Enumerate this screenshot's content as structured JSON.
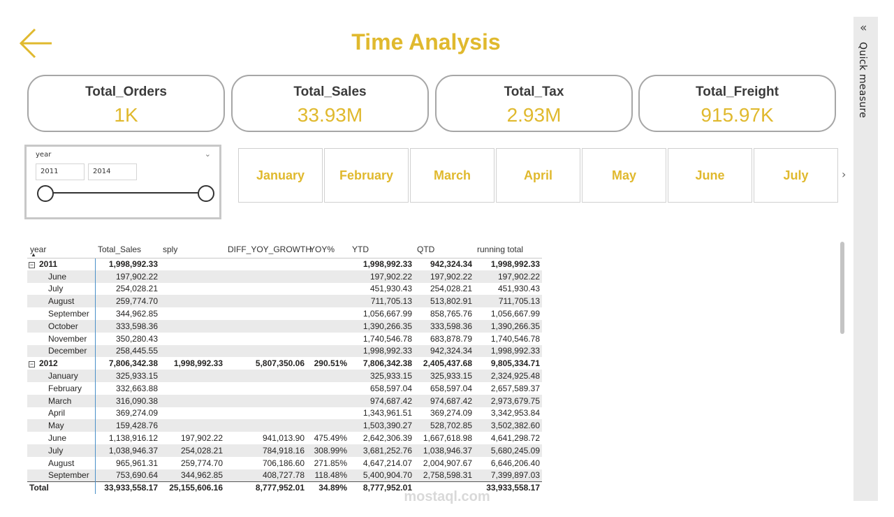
{
  "page": {
    "title": "Time Analysis",
    "back_icon": "arrow-left-icon",
    "accent_color": "#E0B92E"
  },
  "cards": [
    {
      "label": "Total_Orders",
      "value": "1K"
    },
    {
      "label": "Total_Sales",
      "value": "33.93M"
    },
    {
      "label": "Total_Tax",
      "value": "2.93M"
    },
    {
      "label": "Total_Freight",
      "value": "915.97K"
    }
  ],
  "slicer": {
    "title": "year",
    "start": "2011",
    "end": "2014",
    "chevron": "chevron-down-icon"
  },
  "months": [
    "January",
    "February",
    "March",
    "April",
    "May",
    "June",
    "July"
  ],
  "month_next_icon": "chevron-right-icon",
  "quick_measure": {
    "label": "Quick measure",
    "icon": "double-chevron-left-icon"
  },
  "table": {
    "headers": [
      "year",
      "Total_Sales",
      "sply",
      "DIFF_YOY_GROWTH",
      "YOY%",
      "YTD",
      "QTD",
      "running total"
    ],
    "sort_indicator": "▲",
    "rows": [
      {
        "type": "year",
        "cells": [
          "2011",
          "1,998,992.33",
          "",
          "",
          "",
          "1,998,992.33",
          "942,324.34",
          "1,998,992.33"
        ]
      },
      {
        "type": "child",
        "cells": [
          "June",
          "197,902.22",
          "",
          "",
          "",
          "197,902.22",
          "197,902.22",
          "197,902.22"
        ]
      },
      {
        "type": "child",
        "cells": [
          "July",
          "254,028.21",
          "",
          "",
          "",
          "451,930.43",
          "254,028.21",
          "451,930.43"
        ]
      },
      {
        "type": "child",
        "cells": [
          "August",
          "259,774.70",
          "",
          "",
          "",
          "711,705.13",
          "513,802.91",
          "711,705.13"
        ]
      },
      {
        "type": "child",
        "cells": [
          "September",
          "344,962.85",
          "",
          "",
          "",
          "1,056,667.99",
          "858,765.76",
          "1,056,667.99"
        ]
      },
      {
        "type": "child",
        "cells": [
          "October",
          "333,598.36",
          "",
          "",
          "",
          "1,390,266.35",
          "333,598.36",
          "1,390,266.35"
        ]
      },
      {
        "type": "child",
        "cells": [
          "November",
          "350,280.43",
          "",
          "",
          "",
          "1,740,546.78",
          "683,878.79",
          "1,740,546.78"
        ]
      },
      {
        "type": "child",
        "cells": [
          "December",
          "258,445.55",
          "",
          "",
          "",
          "1,998,992.33",
          "942,324.34",
          "1,998,992.33"
        ]
      },
      {
        "type": "year",
        "cells": [
          "2012",
          "7,806,342.38",
          "1,998,992.33",
          "5,807,350.06",
          "290.51%",
          "7,806,342.38",
          "2,405,437.68",
          "9,805,334.71"
        ]
      },
      {
        "type": "child",
        "cells": [
          "January",
          "325,933.15",
          "",
          "",
          "",
          "325,933.15",
          "325,933.15",
          "2,324,925.48"
        ]
      },
      {
        "type": "child",
        "cells": [
          "February",
          "332,663.88",
          "",
          "",
          "",
          "658,597.04",
          "658,597.04",
          "2,657,589.37"
        ]
      },
      {
        "type": "child",
        "cells": [
          "March",
          "316,090.38",
          "",
          "",
          "",
          "974,687.42",
          "974,687.42",
          "2,973,679.75"
        ]
      },
      {
        "type": "child",
        "cells": [
          "April",
          "369,274.09",
          "",
          "",
          "",
          "1,343,961.51",
          "369,274.09",
          "3,342,953.84"
        ]
      },
      {
        "type": "child",
        "cells": [
          "May",
          "159,428.76",
          "",
          "",
          "",
          "1,503,390.27",
          "528,702.85",
          "3,502,382.60"
        ]
      },
      {
        "type": "child",
        "cells": [
          "June",
          "1,138,916.12",
          "197,902.22",
          "941,013.90",
          "475.49%",
          "2,642,306.39",
          "1,667,618.98",
          "4,641,298.72"
        ]
      },
      {
        "type": "child",
        "cells": [
          "July",
          "1,038,946.37",
          "254,028.21",
          "784,918.16",
          "308.99%",
          "3,681,252.76",
          "1,038,946.37",
          "5,680,245.09"
        ]
      },
      {
        "type": "child",
        "cells": [
          "August",
          "965,961.31",
          "259,774.70",
          "706,186.60",
          "271.85%",
          "4,647,214.07",
          "2,004,907.67",
          "6,646,206.40"
        ]
      },
      {
        "type": "child",
        "cells": [
          "September",
          "753,690.64",
          "344,962.85",
          "408,727.78",
          "118.48%",
          "5,400,904.70",
          "2,758,598.31",
          "7,399,897.03"
        ]
      }
    ],
    "total": [
      "Total",
      "33,933,558.17",
      "25,155,606.16",
      "8,777,952.01",
      "34.89%",
      "8,777,952.01",
      "",
      "33,933,558.17"
    ]
  },
  "watermark": "mostaql.com"
}
